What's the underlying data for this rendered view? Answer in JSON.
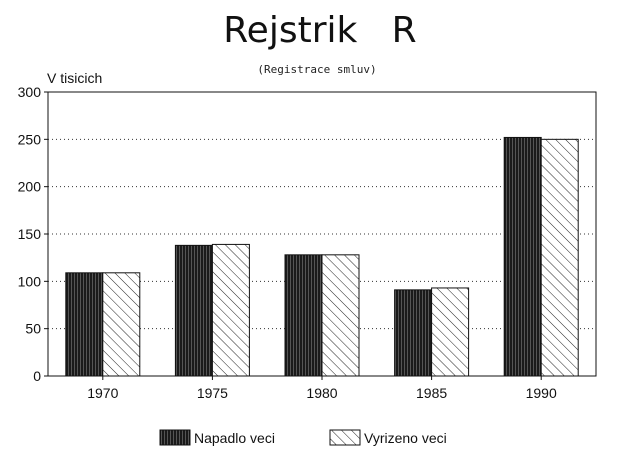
{
  "chart_data": {
    "type": "bar",
    "title": "Rejstrik   R",
    "subtitle": "(Registrace smluv)",
    "ylabel": "V tisicich",
    "xlabel": "",
    "categories": [
      "1970",
      "1975",
      "1980",
      "1985",
      "1990"
    ],
    "series": [
      {
        "name": "Napadlo veci",
        "values": [
          109,
          138,
          128,
          91,
          252
        ],
        "color": "#3a3a3a",
        "pattern": "dense-vertical-hatch"
      },
      {
        "name": "Vyrizeno veci",
        "values": [
          109,
          139,
          128,
          93,
          250
        ],
        "color": "#ffffff",
        "pattern": "diagonal-hatch"
      }
    ],
    "ylim": [
      0,
      300
    ],
    "yticks": [
      "0",
      "50",
      "100",
      "150",
      "200",
      "250",
      "300"
    ],
    "grid": true,
    "grid_style": "dotted",
    "legend_position": "bottom-center"
  }
}
